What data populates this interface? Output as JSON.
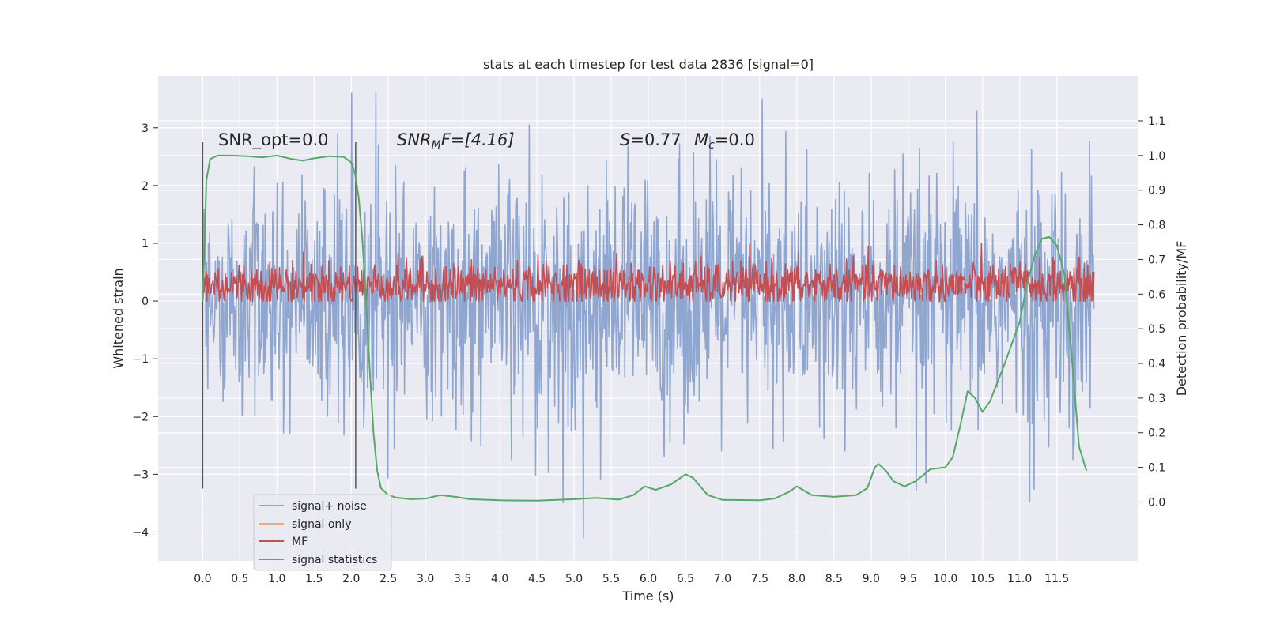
{
  "chart_data": {
    "type": "line",
    "title": "stats at each timestep for test data 2836 [signal=0]",
    "xlabel": "Time (s)",
    "ylabel": "Whitened strain",
    "y2label": "Detection probability/MF",
    "xlim": [
      -0.6,
      12.6
    ],
    "ylim": [
      -4.5,
      3.9
    ],
    "y2lim": [
      -0.17,
      1.23
    ],
    "xticks": [
      "0.0",
      "0.5",
      "1.0",
      "1.5",
      "2.0",
      "2.5",
      "3.0",
      "3.5",
      "4.0",
      "4.5",
      "5.0",
      "5.5",
      "6.0",
      "6.5",
      "7.0",
      "7.5",
      "8.0",
      "8.5",
      "9.0",
      "9.5",
      "10.0",
      "10.5",
      "11.0",
      "11.5"
    ],
    "yticks": [
      "3",
      "2",
      "1",
      "0",
      "−1",
      "−2",
      "−3",
      "−4"
    ],
    "y2ticks": [
      "1.1",
      "1.0",
      "0.9",
      "0.8",
      "0.7",
      "0.6",
      "0.5",
      "0.4",
      "0.3",
      "0.2",
      "0.1",
      "0.0"
    ],
    "grid": true,
    "legend_position": "lower-left",
    "annotations": {
      "snr_opt": "SNR_opt=0.0",
      "snr_mf_sym": "SNR",
      "snr_mf_sub": "M",
      "snr_mf_rest": "F=[4.16]",
      "s_sym": "S",
      "s_val": "=0.77",
      "mc_sym": "M",
      "mc_sub": "c",
      "mc_val": "=0.0"
    },
    "vlines": [
      0.0,
      2.06
    ],
    "series": [
      {
        "name": "signal+ noise",
        "color": "#8fa6d0",
        "x_range": [
          0.0,
          12.0
        ],
        "y_range": [
          -4.1,
          3.6
        ],
        "y_typical": [
          -1.6,
          1.6
        ]
      },
      {
        "name": "signal only",
        "color": "#e8a88a"
      },
      {
        "name": "MF",
        "color": "#c44e52",
        "x_range": [
          0.0,
          12.0
        ],
        "y_range": [
          0.0,
          1.0
        ]
      },
      {
        "name": "signal statistics",
        "color": "#55a868",
        "axis": "right",
        "x": [
          0.0,
          0.05,
          0.1,
          0.2,
          0.4,
          0.6,
          0.8,
          1.0,
          1.2,
          1.35,
          1.5,
          1.7,
          1.9,
          2.0,
          2.05,
          2.1,
          2.15,
          2.2,
          2.25,
          2.3,
          2.35,
          2.4,
          2.5,
          2.6,
          2.8,
          3.0,
          3.2,
          3.4,
          3.6,
          4.0,
          4.5,
          5.0,
          5.3,
          5.6,
          5.8,
          5.95,
          6.1,
          6.3,
          6.5,
          6.6,
          6.8,
          7.0,
          7.5,
          7.7,
          7.9,
          8.0,
          8.2,
          8.5,
          8.8,
          8.95,
          9.05,
          9.1,
          9.2,
          9.3,
          9.45,
          9.6,
          9.8,
          10.0,
          10.1,
          10.2,
          10.3,
          10.4,
          10.5,
          10.6,
          10.8,
          11.0,
          11.1,
          11.2,
          11.3,
          11.4,
          11.5,
          11.6,
          11.7,
          11.8,
          11.9
        ],
        "values": [
          0.58,
          0.93,
          0.99,
          1.0,
          1.0,
          0.998,
          0.995,
          1.0,
          0.99,
          0.985,
          0.992,
          0.998,
          0.996,
          0.98,
          0.95,
          0.88,
          0.76,
          0.58,
          0.38,
          0.2,
          0.09,
          0.04,
          0.02,
          0.013,
          0.008,
          0.01,
          0.02,
          0.015,
          0.008,
          0.005,
          0.004,
          0.008,
          0.012,
          0.007,
          0.02,
          0.045,
          0.035,
          0.05,
          0.08,
          0.07,
          0.02,
          0.006,
          0.005,
          0.01,
          0.03,
          0.045,
          0.02,
          0.015,
          0.02,
          0.04,
          0.1,
          0.11,
          0.09,
          0.06,
          0.045,
          0.06,
          0.095,
          0.1,
          0.13,
          0.22,
          0.32,
          0.3,
          0.26,
          0.29,
          0.4,
          0.52,
          0.63,
          0.71,
          0.76,
          0.765,
          0.74,
          0.66,
          0.42,
          0.16,
          0.09
        ]
      }
    ]
  }
}
